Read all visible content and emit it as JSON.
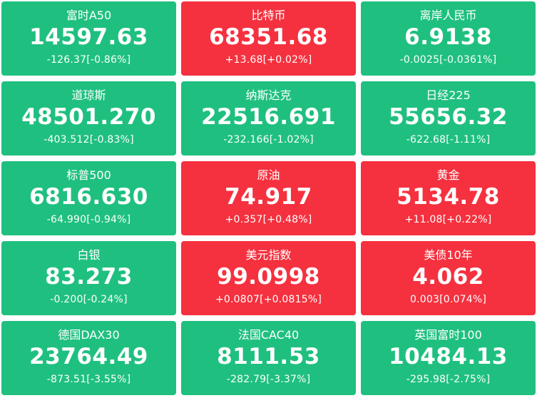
{
  "colors": {
    "down": "#1fc07f",
    "up": "#f5313f",
    "text": "#ffffff"
  },
  "tiles": [
    {
      "name": "富时A50",
      "price": "14597.63",
      "change": "-126.37[-0.86%]",
      "trend": "down"
    },
    {
      "name": "比特币",
      "price": "68351.68",
      "change": "+13.68[+0.02%]",
      "trend": "up"
    },
    {
      "name": "离岸人民币",
      "price": "6.9138",
      "change": "-0.0025[-0.0361%]",
      "trend": "down"
    },
    {
      "name": "道琼斯",
      "price": "48501.270",
      "change": "-403.512[-0.83%]",
      "trend": "down"
    },
    {
      "name": "纳斯达克",
      "price": "22516.691",
      "change": "-232.166[-1.02%]",
      "trend": "down"
    },
    {
      "name": "日经225",
      "price": "55656.32",
      "change": "-622.68[-1.11%]",
      "trend": "down"
    },
    {
      "name": "标普500",
      "price": "6816.630",
      "change": "-64.990[-0.94%]",
      "trend": "down"
    },
    {
      "name": "原油",
      "price": "74.917",
      "change": "+0.357[+0.48%]",
      "trend": "up"
    },
    {
      "name": "黄金",
      "price": "5134.78",
      "change": "+11.08[+0.22%]",
      "trend": "up"
    },
    {
      "name": "白银",
      "price": "83.273",
      "change": "-0.200[-0.24%]",
      "trend": "down"
    },
    {
      "name": "美元指数",
      "price": "99.0998",
      "change": "+0.0807[+0.0815%]",
      "trend": "up"
    },
    {
      "name": "美债10年",
      "price": "4.062",
      "change": "0.003[0.074%]",
      "trend": "up"
    },
    {
      "name": "德国DAX30",
      "price": "23764.49",
      "change": "-873.51[-3.55%]",
      "trend": "down"
    },
    {
      "name": "法国CAC40",
      "price": "8111.53",
      "change": "-282.79[-3.37%]",
      "trend": "down"
    },
    {
      "name": "英国富时100",
      "price": "10484.13",
      "change": "-295.98[-2.75%]",
      "trend": "down"
    }
  ]
}
